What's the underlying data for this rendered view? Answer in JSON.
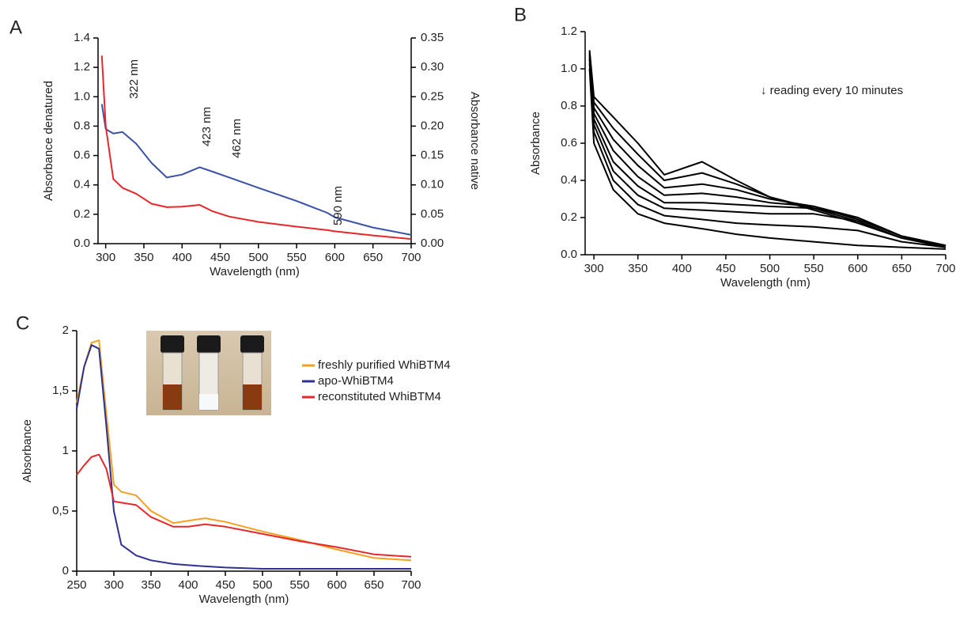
{
  "chart_data": [
    {
      "type": "line",
      "panel": "A",
      "xlabel": "Wavelength (nm)",
      "ylabel": "Absorbance denatured",
      "y2label": "Absorbance native",
      "x": [
        295,
        300,
        310,
        322,
        340,
        360,
        380,
        400,
        423,
        440,
        462,
        500,
        550,
        590,
        600,
        650,
        700
      ],
      "series": [
        {
          "color": "#3a52a8",
          "axis": "y",
          "values": [
            0.95,
            0.78,
            0.75,
            0.76,
            0.68,
            0.55,
            0.45,
            0.47,
            0.52,
            0.49,
            0.45,
            0.38,
            0.29,
            0.21,
            0.18,
            0.11,
            0.06
          ]
        },
        {
          "color": "#e8272a",
          "axis": "y2",
          "values": [
            0.32,
            0.2,
            0.11,
            0.095,
            0.085,
            0.068,
            0.062,
            0.063,
            0.066,
            0.055,
            0.046,
            0.037,
            0.029,
            0.023,
            0.021,
            0.014,
            0.008
          ]
        }
      ],
      "xlim": [
        290,
        700
      ],
      "xticks": [
        300,
        350,
        400,
        450,
        500,
        550,
        600,
        650,
        700
      ],
      "ylim": [
        0,
        1.4
      ],
      "yticks": [
        {
          "value": 0,
          "label": "0.0"
        },
        0.2,
        0.4,
        0.6,
        0.8,
        {
          "value": 1,
          "label": "1.0"
        },
        1.2,
        1.4
      ],
      "y2lim": [
        0,
        0.35
      ],
      "y2ticks": [
        {
          "value": 0,
          "label": "0.00"
        },
        0.05,
        {
          "value": 0.1,
          "label": "0.10"
        },
        0.15,
        {
          "value": 0.2,
          "label": "0.20"
        },
        0.25,
        {
          "value": 0.3,
          "label": "0.30"
        },
        0.35
      ],
      "annotations": [
        "322 nm",
        "423 nm",
        "462 nm",
        "590 nm"
      ]
    },
    {
      "type": "line",
      "panel": "B",
      "xlabel": "Wavelength (nm)",
      "ylabel": "Absorbance",
      "x": [
        295,
        300,
        322,
        350,
        380,
        423,
        462,
        500,
        550,
        600,
        650,
        700
      ],
      "series": [
        {
          "color": "#000000",
          "values": [
            1.1,
            0.85,
            0.74,
            0.6,
            0.43,
            0.5,
            0.4,
            0.31,
            0.24,
            0.17,
            0.09,
            0.05
          ]
        },
        {
          "color": "#000000",
          "values": [
            1.09,
            0.82,
            0.68,
            0.54,
            0.4,
            0.44,
            0.38,
            0.31,
            0.25,
            0.18,
            0.09,
            0.05
          ]
        },
        {
          "color": "#000000",
          "values": [
            1.08,
            0.79,
            0.62,
            0.48,
            0.36,
            0.38,
            0.35,
            0.3,
            0.26,
            0.19,
            0.1,
            0.05
          ]
        },
        {
          "color": "#000000",
          "values": [
            1.07,
            0.76,
            0.56,
            0.42,
            0.32,
            0.33,
            0.31,
            0.28,
            0.26,
            0.2,
            0.1,
            0.05
          ]
        },
        {
          "color": "#000000",
          "values": [
            1.06,
            0.73,
            0.5,
            0.37,
            0.28,
            0.28,
            0.27,
            0.26,
            0.25,
            0.2,
            0.1,
            0.05
          ]
        },
        {
          "color": "#000000",
          "values": [
            1.05,
            0.7,
            0.45,
            0.32,
            0.25,
            0.24,
            0.23,
            0.22,
            0.22,
            0.18,
            0.09,
            0.04
          ]
        },
        {
          "color": "#000000",
          "values": [
            1.03,
            0.66,
            0.4,
            0.27,
            0.21,
            0.19,
            0.17,
            0.16,
            0.15,
            0.13,
            0.07,
            0.04
          ]
        },
        {
          "color": "#000000",
          "values": [
            1.0,
            0.6,
            0.35,
            0.22,
            0.17,
            0.14,
            0.11,
            0.09,
            0.07,
            0.05,
            0.04,
            0.03
          ]
        }
      ],
      "xlim": [
        290,
        700
      ],
      "xticks": [
        300,
        350,
        400,
        450,
        500,
        550,
        600,
        650,
        700
      ],
      "ylim": [
        0,
        1.2
      ],
      "yticks": [
        {
          "value": 0,
          "label": "0.0"
        },
        0.2,
        0.4,
        0.6,
        0.8,
        {
          "value": 1,
          "label": "1.0"
        },
        1.2
      ],
      "annotations": [
        "↓ reading every 10 minutes"
      ]
    },
    {
      "type": "line",
      "panel": "C",
      "xlabel": "Wavelength (nm)",
      "ylabel": "Absorbance",
      "x": [
        250,
        260,
        270,
        280,
        290,
        300,
        310,
        330,
        350,
        380,
        400,
        423,
        450,
        500,
        550,
        600,
        650,
        700
      ],
      "series": [
        {
          "name": "freshly purified WhiBTM4",
          "color": "#f5a01e",
          "values": [
            1.4,
            1.7,
            1.9,
            1.92,
            1.3,
            0.72,
            0.66,
            0.63,
            0.5,
            0.4,
            0.42,
            0.44,
            0.41,
            0.33,
            0.26,
            0.18,
            0.11,
            0.09
          ]
        },
        {
          "name": "apo-WhiBTM4",
          "color": "#2e3192",
          "values": [
            1.35,
            1.7,
            1.88,
            1.85,
            1.2,
            0.5,
            0.22,
            0.13,
            0.09,
            0.06,
            0.05,
            0.04,
            0.03,
            0.02,
            0.02,
            0.02,
            0.02,
            0.02
          ]
        },
        {
          "name": "reconstituted WhiBTM4",
          "color": "#e8272a",
          "values": [
            0.8,
            0.88,
            0.95,
            0.97,
            0.85,
            0.58,
            0.57,
            0.55,
            0.45,
            0.37,
            0.37,
            0.39,
            0.37,
            0.31,
            0.25,
            0.2,
            0.14,
            0.12
          ]
        }
      ],
      "xlim": [
        250,
        700
      ],
      "xticks": [
        250,
        300,
        350,
        400,
        450,
        500,
        550,
        600,
        650,
        700
      ],
      "ylim": [
        0,
        2
      ],
      "yticks": [
        0,
        {
          "value": 0.5,
          "label": "0,5"
        },
        1,
        {
          "value": 1.5,
          "label": "1,5"
        },
        2
      ]
    }
  ]
}
